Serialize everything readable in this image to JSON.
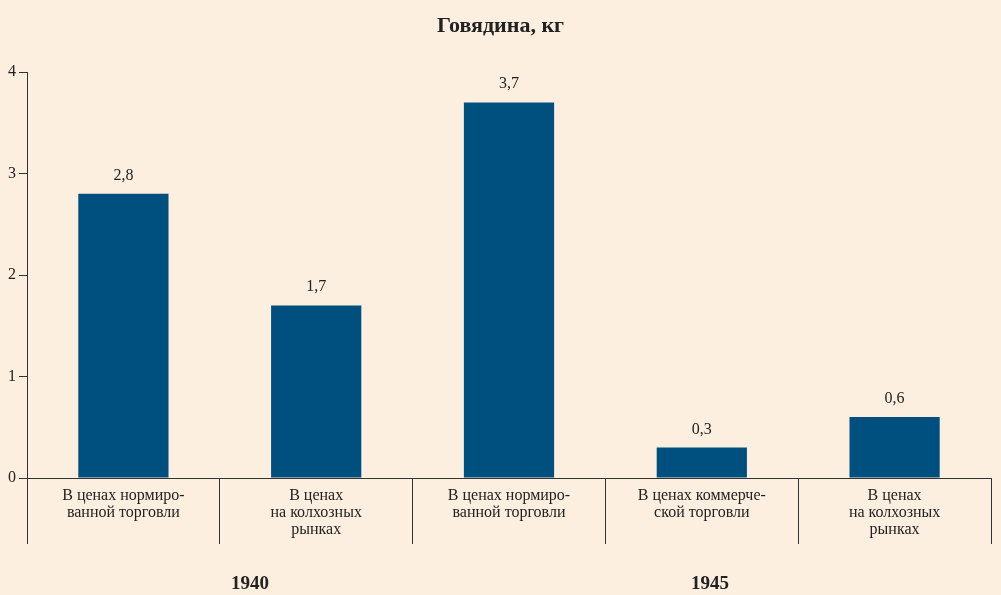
{
  "chart_data": {
    "type": "bar",
    "title": "Говядина, кг",
    "categories": [
      "В ценах нормиро-\nванной торговли",
      "В ценах\nна колхозных\nрынках",
      "В ценах нормиро-\nванной торговли",
      "В ценах коммерче-\nской торговли",
      "В ценах\nна колхозных\nрынках"
    ],
    "values": [
      2.8,
      1.7,
      3.7,
      0.3,
      0.6
    ],
    "color": "#00507f",
    "ylim": [
      0,
      4
    ],
    "yticks": [
      0,
      1,
      2,
      3,
      4
    ],
    "grid": false,
    "value_labels": [
      "2,8",
      "1,7",
      "3,7",
      "0,3",
      "0,6"
    ],
    "annotations": [
      "1940",
      "1945"
    ]
  }
}
